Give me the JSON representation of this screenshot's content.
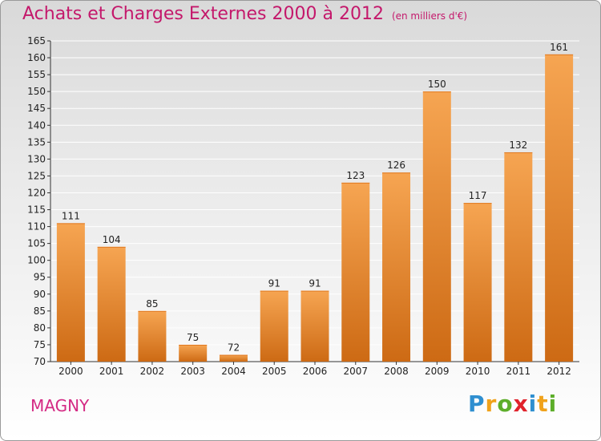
{
  "header": {
    "title": "Achats et Charges Externes 2000 à 2012",
    "unit": "(en milliers d'€)"
  },
  "footer": {
    "commune": "MAGNY",
    "logo_letters": [
      {
        "char": "P",
        "color": "#2f8fd0"
      },
      {
        "char": "r",
        "color": "#f0a21b"
      },
      {
        "char": "o",
        "color": "#5dae2a"
      },
      {
        "char": "x",
        "color": "#e0222b"
      },
      {
        "char": "i",
        "color": "#2f8fd0"
      },
      {
        "char": "t",
        "color": "#f0a21b"
      },
      {
        "char": "i",
        "color": "#5dae2a"
      }
    ]
  },
  "chart_data": {
    "type": "bar",
    "title": "Achats et Charges Externes 2000 à 2012",
    "categories": [
      "2000",
      "2001",
      "2002",
      "2003",
      "2004",
      "2005",
      "2006",
      "2007",
      "2008",
      "2009",
      "2010",
      "2011",
      "2012"
    ],
    "values": [
      111,
      104,
      85,
      75,
      72,
      91,
      91,
      123,
      126,
      150,
      117,
      132,
      161
    ],
    "ylim": [
      70,
      165
    ],
    "yticks": [
      70,
      75,
      80,
      85,
      90,
      95,
      100,
      105,
      110,
      115,
      120,
      125,
      130,
      135,
      140,
      145,
      150,
      155,
      160,
      165
    ],
    "grid": true,
    "bar_color_top": "#f6a552",
    "bar_color_bottom": "#cd6a14"
  }
}
